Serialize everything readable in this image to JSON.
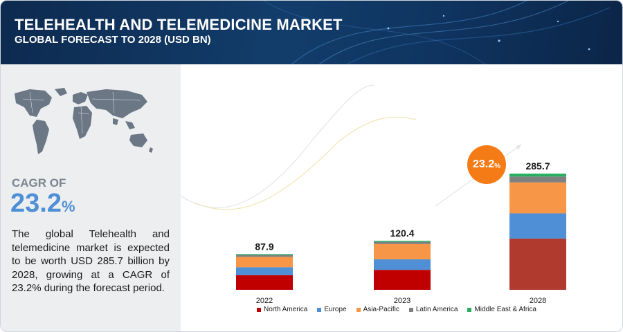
{
  "header": {
    "title": "TELEHEALTH AND TELEMEDICINE MARKET",
    "subtitle": "GLOBAL FORECAST TO 2028 (USD BN)"
  },
  "left_panel": {
    "cagr_label": "CAGR OF",
    "cagr_value": "23.2",
    "cagr_unit": "%",
    "description": "The global Telehealth and telemedicine market is expected to be worth USD 285.7 billion by 2028, growing at a CAGR of 23.2% during the forecast period.",
    "map_icon": "world-map-icon"
  },
  "cagr_bubble": {
    "value": "23.2",
    "unit": "%"
  },
  "colors": {
    "north_america": "#c00000",
    "europe": "#4e8fd6",
    "asia_pacific": "#f79646",
    "latin_america": "#808080",
    "middle_east_africa": "#27ae60",
    "north_america_2028": "#b03a2e"
  },
  "chart_data": {
    "type": "bar",
    "stacked": true,
    "categories": [
      "2022",
      "2023",
      "2028"
    ],
    "totals": [
      87.9,
      120.4,
      285.7
    ],
    "total_labels": [
      "87.9",
      "120.4",
      "285.7"
    ],
    "series": [
      {
        "name": "North America",
        "values": [
          36.0,
          49.0,
          126.0
        ]
      },
      {
        "name": "Europe",
        "values": [
          19.5,
          26.0,
          62.0
        ]
      },
      {
        "name": "Asia-Pacific",
        "values": [
          25.5,
          37.5,
          76.0
        ]
      },
      {
        "name": "Latin America",
        "values": [
          4.5,
          5.5,
          14.5
        ]
      },
      {
        "name": "Middle East & Africa",
        "values": [
          2.4,
          2.4,
          7.2
        ]
      }
    ],
    "ylim": [
      0,
      285.7
    ],
    "legend_position": "bottom",
    "grid": false
  }
}
